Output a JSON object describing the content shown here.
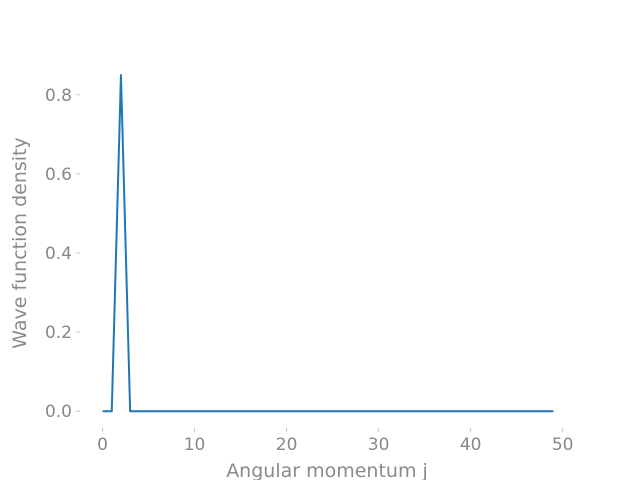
{
  "chart_data": {
    "type": "line",
    "xlabel": "Angular momentum j",
    "ylabel": "Wave function density",
    "xlim": [
      -2.45,
      51.45
    ],
    "ylim": [
      -0.0425,
      0.893
    ],
    "xticks": [
      0,
      10,
      20,
      30,
      40,
      50
    ],
    "xtick_labels": [
      "0",
      "10",
      "20",
      "30",
      "40",
      "50"
    ],
    "yticks": [
      0.0,
      0.2,
      0.4,
      0.6,
      0.8
    ],
    "ytick_labels": [
      "0.0",
      "0.2",
      "0.4",
      "0.6",
      "0.8"
    ],
    "grid": false,
    "series": [
      {
        "color": "#1f77b4",
        "x": [
          0,
          1,
          2,
          3,
          4,
          5,
          6,
          7,
          8,
          9,
          10,
          11,
          12,
          13,
          14,
          15,
          16,
          17,
          18,
          19,
          20,
          21,
          22,
          23,
          24,
          25,
          26,
          27,
          28,
          29,
          30,
          31,
          32,
          33,
          34,
          35,
          36,
          37,
          38,
          39,
          40,
          41,
          42,
          43,
          44,
          45,
          46,
          47,
          48,
          49
        ],
        "values": [
          0,
          0,
          0.85,
          0,
          0,
          0,
          0,
          0,
          0,
          0,
          0,
          0,
          0,
          0,
          0,
          0,
          0,
          0,
          0,
          0,
          0,
          0,
          0,
          0,
          0,
          0,
          0,
          0,
          0,
          0,
          0,
          0,
          0,
          0,
          0,
          0,
          0,
          0,
          0,
          0,
          0,
          0,
          0,
          0,
          0,
          0,
          0,
          0,
          0,
          0
        ]
      }
    ]
  }
}
